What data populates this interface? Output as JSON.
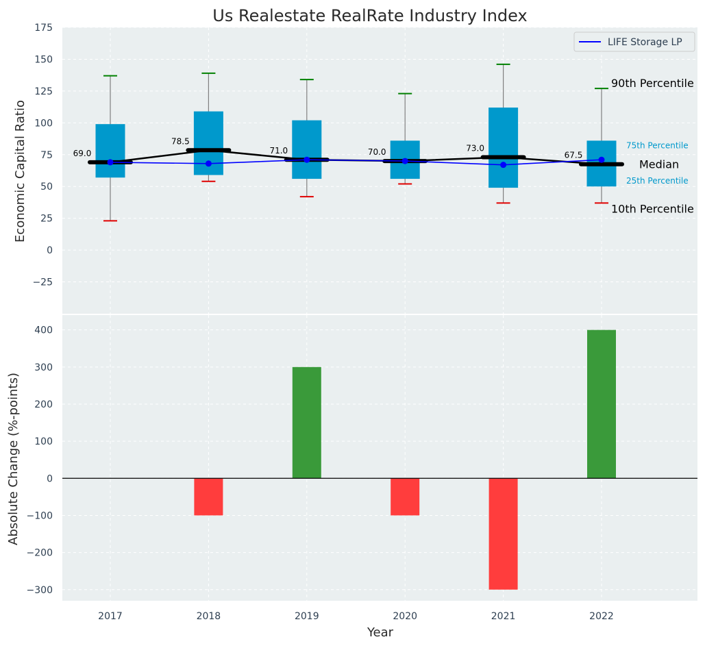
{
  "chart_data": [
    {
      "type": "box",
      "title": "Us Realestate RealRate Industry Index",
      "ylabel": "Economic Capital Ratio",
      "ylim": [
        -50,
        175
      ],
      "yticks": [
        -25,
        0,
        25,
        50,
        75,
        100,
        125,
        150,
        175
      ],
      "categories": [
        "2017",
        "2018",
        "2019",
        "2020",
        "2021",
        "2022"
      ],
      "grid": true,
      "legend": {
        "placement": "top-right",
        "entries": [
          "LIFE Storage LP"
        ]
      },
      "series": [
        {
          "name": "industry-distribution",
          "p10": [
            23,
            54,
            42,
            52,
            37,
            37
          ],
          "p25": [
            57,
            59,
            56,
            56,
            49,
            50
          ],
          "median": [
            69.0,
            78.5,
            71.0,
            70.0,
            73.0,
            67.5
          ],
          "p75": [
            99,
            109,
            102,
            86,
            112,
            86
          ],
          "p90": [
            137,
            139,
            134,
            123,
            146,
            127
          ]
        },
        {
          "name": "LIFE Storage LP",
          "values": [
            69,
            68,
            71,
            70,
            67,
            71
          ]
        }
      ],
      "median_labels": [
        "69.0",
        "78.5",
        "71.0",
        "70.0",
        "73.0",
        "67.5"
      ],
      "annotations": {
        "p90": "90th Percentile",
        "p75": "75th Percentile",
        "median": "Median",
        "p25": "25th Percentile",
        "p10": "10th Percentile"
      },
      "colors": {
        "box": "#0099cc",
        "median": "#000000",
        "company": "#0000ff",
        "p90_cap": "#008000",
        "p10_cap": "#e00000",
        "whisker": "#808080",
        "background": "#eaeff0"
      }
    },
    {
      "type": "bar",
      "ylabel": "Absolute Change (%-points)",
      "xlabel": "Year",
      "ylim": [
        -330,
        440
      ],
      "yticks": [
        -300,
        -200,
        -100,
        0,
        100,
        200,
        300,
        400
      ],
      "categories": [
        "2017",
        "2018",
        "2019",
        "2020",
        "2021",
        "2022"
      ],
      "values": [
        0,
        -100,
        300,
        -100,
        -300,
        400
      ],
      "grid": true,
      "colors": {
        "positive": "#3a9a3a",
        "negative": "#ff3d3d"
      }
    }
  ]
}
